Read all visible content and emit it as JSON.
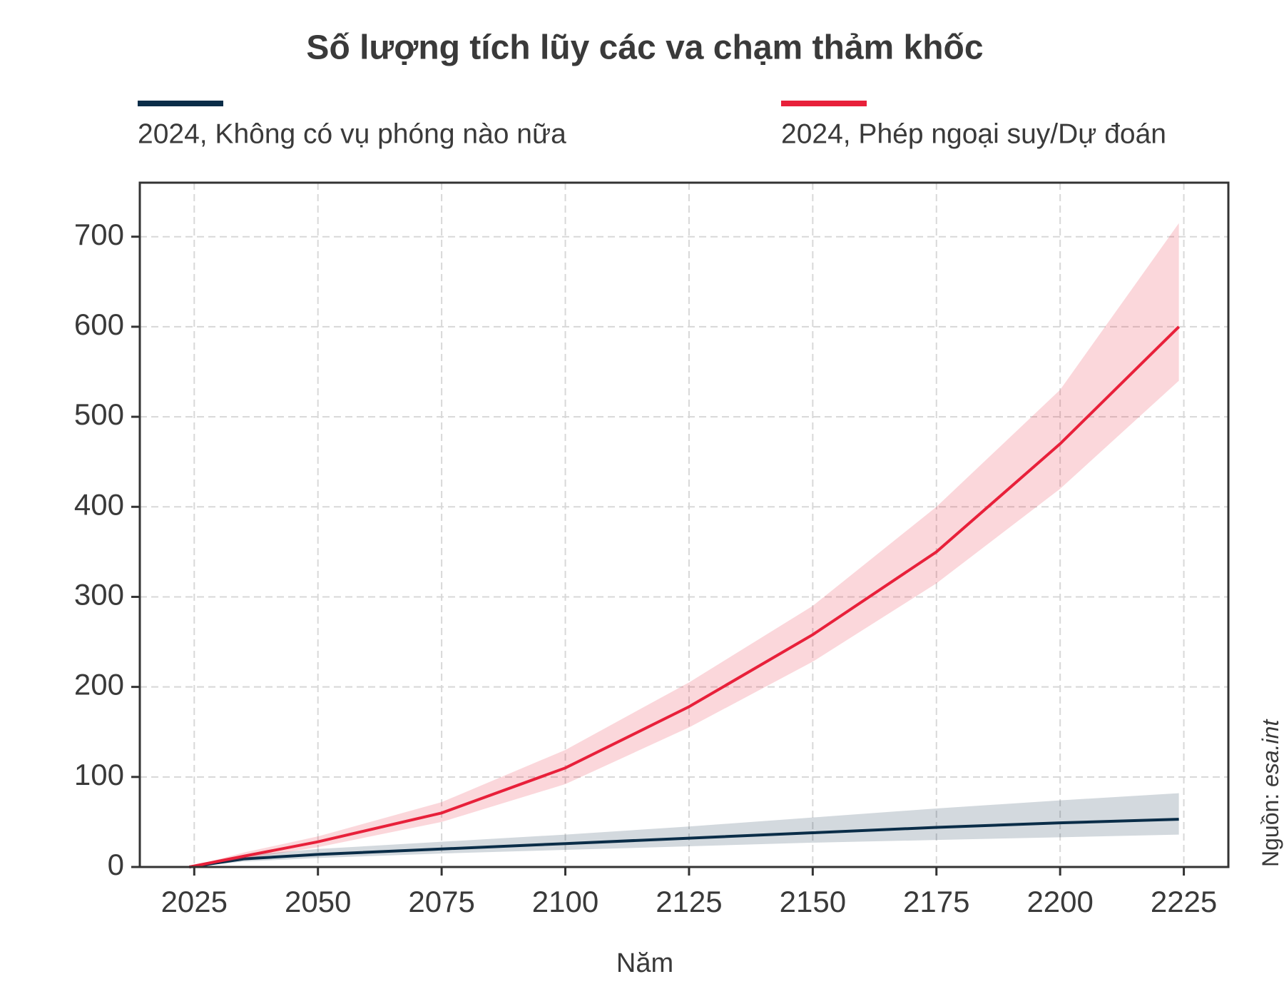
{
  "chart_data": {
    "type": "line",
    "title": "Số lượng tích lũy các va chạm thảm khốc",
    "x_label": "Năm",
    "source_label": "Nguồn:",
    "source_site": "esa.int",
    "x": [
      2024,
      2035,
      2050,
      2075,
      2100,
      2125,
      2150,
      2175,
      2200,
      2224
    ],
    "series": [
      {
        "name": "2024, Không có vụ phóng nào nữa",
        "color": "#0a2d48",
        "values": [
          0,
          9,
          14,
          20,
          26,
          32,
          38,
          44,
          49,
          53
        ],
        "band_low": [
          0,
          6,
          10,
          15,
          19,
          23,
          27,
          30,
          33,
          36
        ],
        "band_high": [
          0,
          13,
          20,
          28,
          36,
          45,
          55,
          65,
          74,
          82
        ]
      },
      {
        "name": "2024, Phép ngoại suy/Dự đoán",
        "color": "#e8203a",
        "values": [
          0,
          12,
          28,
          60,
          110,
          178,
          258,
          350,
          470,
          600
        ],
        "band_low": [
          0,
          9,
          22,
          50,
          92,
          155,
          228,
          315,
          420,
          540
        ],
        "band_high": [
          0,
          16,
          34,
          72,
          130,
          205,
          290,
          400,
          530,
          715
        ]
      }
    ],
    "xlim": [
      2014,
      2234
    ],
    "ylim": [
      0,
      760
    ],
    "xticks": [
      2025,
      2050,
      2075,
      2100,
      2125,
      2150,
      2175,
      2200,
      2225
    ],
    "yticks": [
      0,
      100,
      200,
      300,
      400,
      500,
      600,
      700
    ],
    "grid": true,
    "legend": "top"
  }
}
